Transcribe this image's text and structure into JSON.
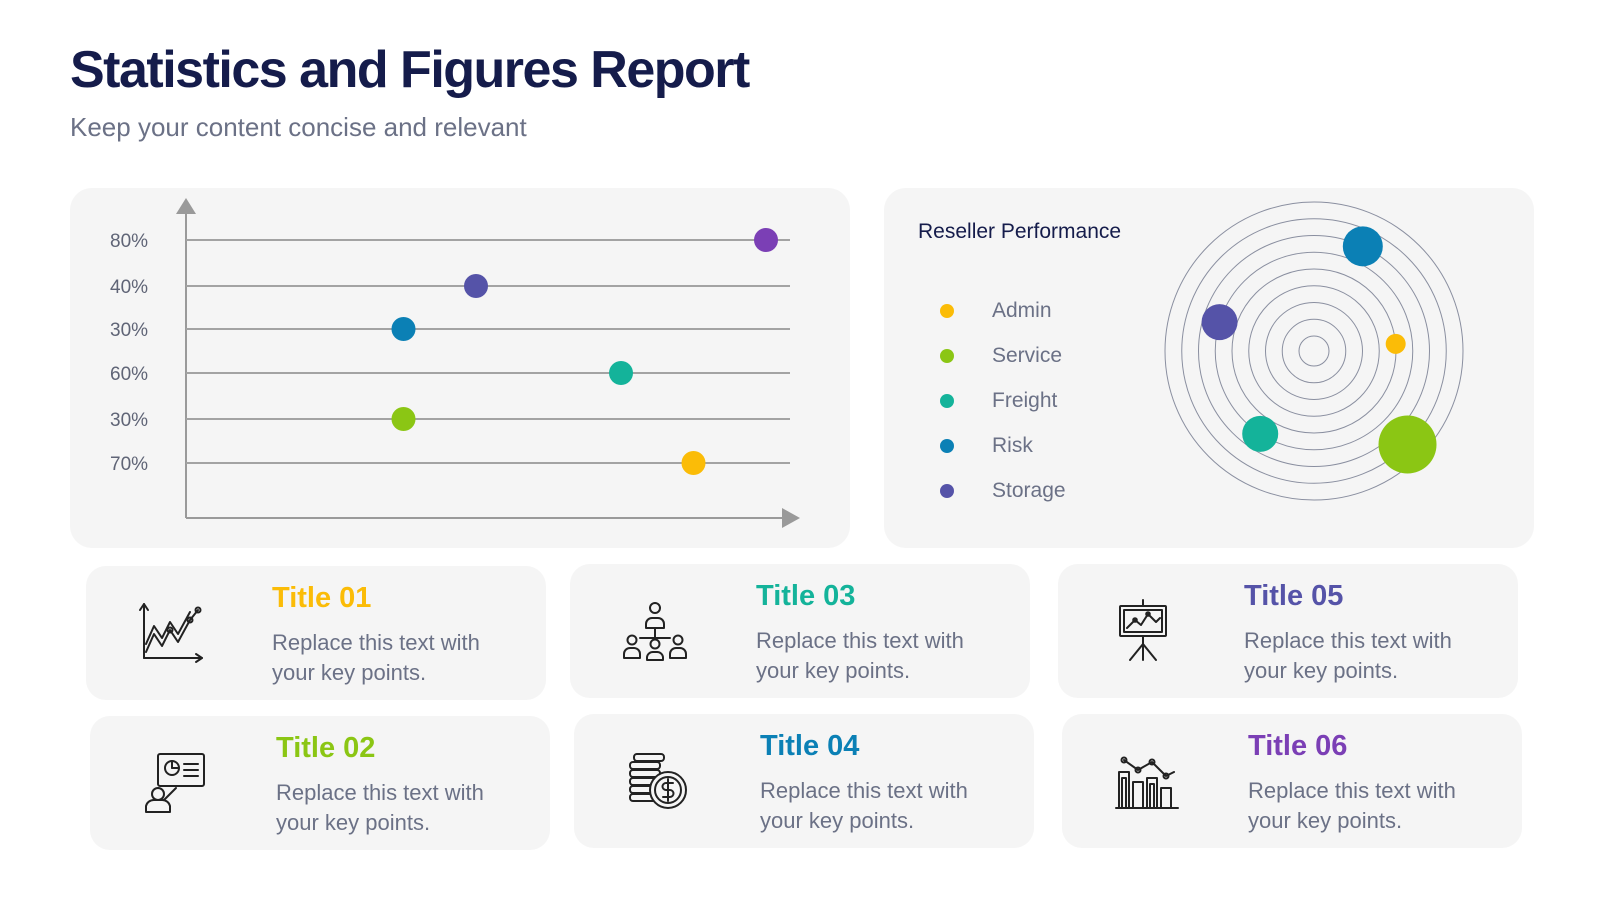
{
  "header": {
    "title": "Statistics and Figures Report",
    "subtitle": "Keep your content concise and relevant"
  },
  "chart_data": [
    {
      "type": "scatter",
      "title": "",
      "xlabel": "",
      "ylabel": "",
      "categories": [
        "80%",
        "40%",
        "30%",
        "60%",
        "30%",
        "70%"
      ],
      "series": [
        {
          "color": "#7b3fb5",
          "row_label": "80%",
          "value": 0.8
        },
        {
          "color": "#5553a8",
          "row_label": "40%",
          "value": 0.4
        },
        {
          "color": "#0b80b5",
          "row_label": "30%",
          "value": 0.3
        },
        {
          "color": "#14b39a",
          "row_label": "60%",
          "value": 0.6
        },
        {
          "color": "#8bc614",
          "row_label": "30%",
          "value": 0.3
        },
        {
          "color": "#fbbc07",
          "row_label": "70%",
          "value": 0.7
        }
      ],
      "grid": true,
      "legend": "none"
    },
    {
      "type": "scatter",
      "title": "Reseller Performance",
      "legend": "left",
      "series": [
        {
          "name": "Admin",
          "color": "#fbbc07",
          "size": 1,
          "ring": 5,
          "angle_deg": -5
        },
        {
          "name": "Service",
          "color": "#8bc614",
          "size": 4,
          "ring": 8,
          "angle_deg": 45
        },
        {
          "name": "Freight",
          "color": "#14b39a",
          "size": 2,
          "ring": 6,
          "angle_deg": 123
        },
        {
          "name": "Risk",
          "color": "#0b80b5",
          "size": 3,
          "ring": 7,
          "angle_deg": -65
        },
        {
          "name": "Storage",
          "color": "#5553a8",
          "size": 2,
          "ring": 6,
          "angle_deg": -163
        }
      ],
      "rings": 9
    }
  ],
  "cards": [
    {
      "title": "Title 01",
      "text": "Replace this text with your key points.",
      "color": "#fbbc07",
      "icon": "growth-chart-icon"
    },
    {
      "title": "Title 02",
      "text": "Replace this text with your key points.",
      "color": "#8bc614",
      "icon": "presentation-person-icon"
    },
    {
      "title": "Title 03",
      "text": "Replace this text with your key points.",
      "color": "#14b39a",
      "icon": "team-hierarchy-icon"
    },
    {
      "title": "Title 04",
      "text": "Replace this text with your key points.",
      "color": "#0b80b5",
      "icon": "coins-dollar-icon"
    },
    {
      "title": "Title 05",
      "text": "Replace this text with your key points.",
      "color": "#5553a8",
      "icon": "easel-chart-icon"
    },
    {
      "title": "Title 06",
      "text": "Replace this text with your key points.",
      "color": "#7b3fb5",
      "icon": "bar-growth-icon"
    }
  ]
}
